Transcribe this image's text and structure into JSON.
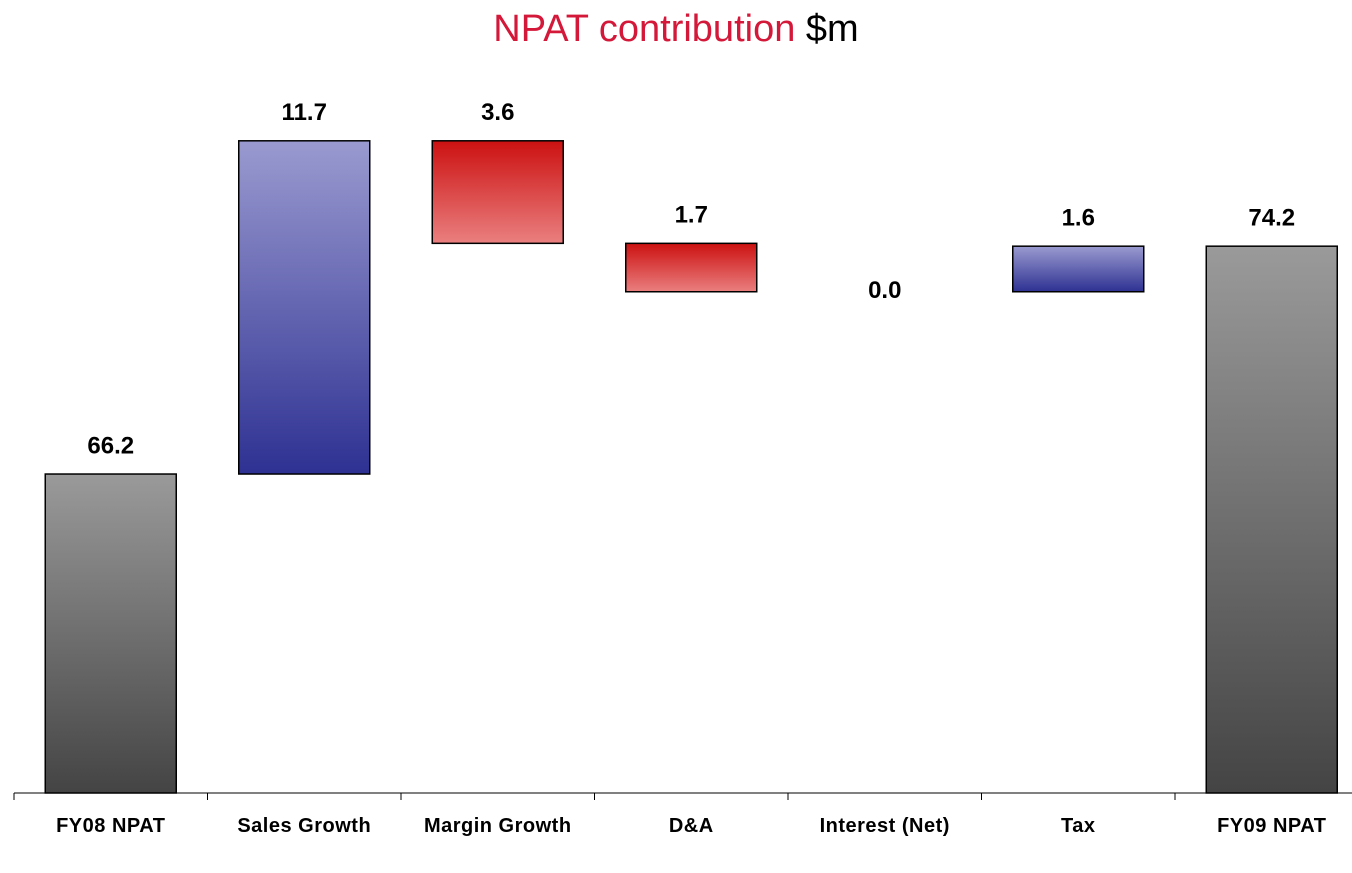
{
  "chart_data": {
    "type": "waterfall",
    "title": "NPAT contribution",
    "title_unit": "$m",
    "categories": [
      "FY08 NPAT",
      "Sales Growth",
      "Margin Growth",
      "D&A",
      "Interest (Net)",
      "Tax",
      "FY09 NPAT"
    ],
    "values": [
      66.2,
      11.7,
      -3.6,
      -1.7,
      0.0,
      1.6,
      74.2
    ],
    "value_labels": [
      "66.2",
      "11.7",
      "3.6",
      "1.7",
      "0.0",
      "1.6",
      "74.2"
    ],
    "colors": {
      "total": [
        "#9a9a9a",
        "#444444"
      ],
      "increase": [
        "#9a9ad0",
        "#2e3192"
      ],
      "decrease": [
        "#cc1111",
        "#ea7f7f"
      ]
    },
    "ylim": [
      55,
      80
    ]
  }
}
